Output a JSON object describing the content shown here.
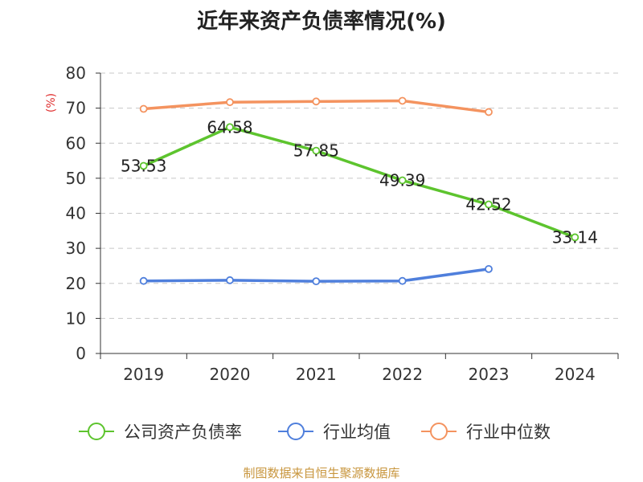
{
  "chart_data": {
    "type": "line",
    "title": "近年来资产负债率情况(%)",
    "ylabel": "(%)",
    "xlabel": "",
    "categories": [
      "2019",
      "2020",
      "2021",
      "2022",
      "2023",
      "2024"
    ],
    "ylim": [
      0,
      80
    ],
    "yticks": [
      0,
      10,
      20,
      30,
      40,
      50,
      60,
      70,
      80
    ],
    "grid": "horizontal dashed",
    "legend_position": "bottom",
    "series": [
      {
        "name": "公司资产负债率",
        "color": "#5dc42e",
        "values": [
          53.53,
          64.58,
          57.85,
          49.39,
          42.52,
          33.14
        ],
        "labels": [
          "53.53",
          "64.58",
          "57.85",
          "49.39",
          "42.52",
          "33.14"
        ]
      },
      {
        "name": "行业均值",
        "color": "#4f7fdc",
        "values": [
          20.7,
          20.9,
          20.6,
          20.7,
          24.1,
          null
        ]
      },
      {
        "name": "行业中位数",
        "color": "#f4935f",
        "values": [
          69.8,
          71.7,
          71.9,
          72.1,
          68.9,
          null
        ]
      }
    ]
  },
  "footer": {
    "source": "制图数据来自恒生聚源数据库"
  }
}
